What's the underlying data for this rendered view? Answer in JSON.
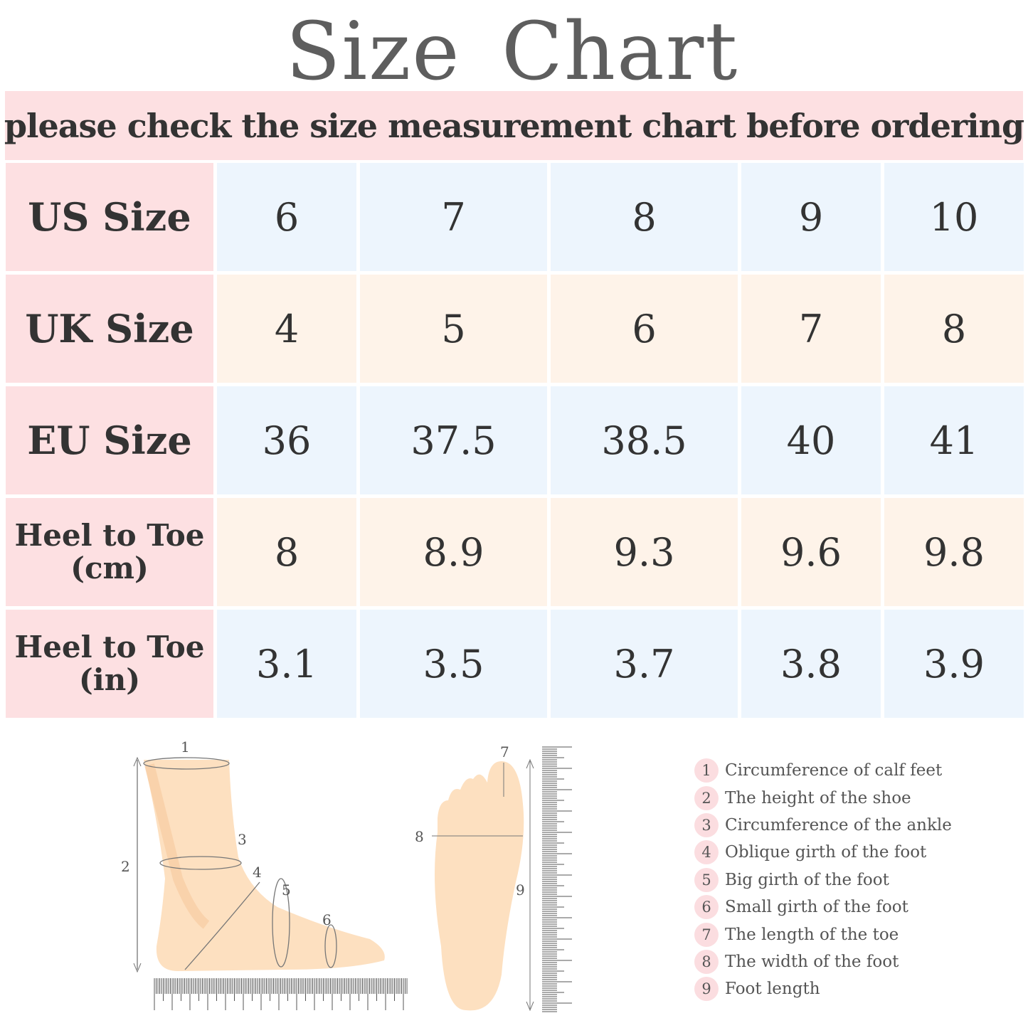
{
  "title": "Size  Chart",
  "banner": "please check the size measurement chart before ordering",
  "table": {
    "rows": [
      {
        "label": "US Size",
        "values": [
          "6",
          "7",
          "8",
          "9",
          "10"
        ]
      },
      {
        "label": "UK Size",
        "values": [
          "4",
          "5",
          "6",
          "7",
          "8"
        ]
      },
      {
        "label": "EU Size",
        "values": [
          "36",
          "37.5",
          "38.5",
          "40",
          "41"
        ]
      },
      {
        "label_line1": "Heel to Toe",
        "label_line2": "(cm)",
        "values": [
          "8",
          "8.9",
          "9.3",
          "9.6",
          "9.8"
        ]
      },
      {
        "label_line1": "Heel to Toe",
        "label_line2": "(in)",
        "values": [
          "3.1",
          "3.5",
          "3.7",
          "3.8",
          "3.9"
        ]
      }
    ]
  },
  "diagram_markers": {
    "side": [
      "1",
      "2",
      "3",
      "4",
      "5",
      "6"
    ],
    "sole": [
      "7",
      "8",
      "9"
    ]
  },
  "legend": [
    {
      "n": "1",
      "text": "Circumference of calf feet"
    },
    {
      "n": "2",
      "text": "The height of the shoe"
    },
    {
      "n": "3",
      "text": "Circumference of the ankle"
    },
    {
      "n": "4",
      "text": "Oblique girth of the foot"
    },
    {
      "n": "5",
      "text": "Big girth of the foot"
    },
    {
      "n": "6",
      "text": "Small girth of the foot"
    },
    {
      "n": "7",
      "text": "The length of the toe"
    },
    {
      "n": "8",
      "text": "The width of the foot"
    },
    {
      "n": "9",
      "text": "Foot length"
    }
  ],
  "colors": {
    "label_bg": "#fde0e2",
    "blue_row": "#edf5fd",
    "cream_row": "#fef3e9",
    "skin": "#fde0c0"
  }
}
